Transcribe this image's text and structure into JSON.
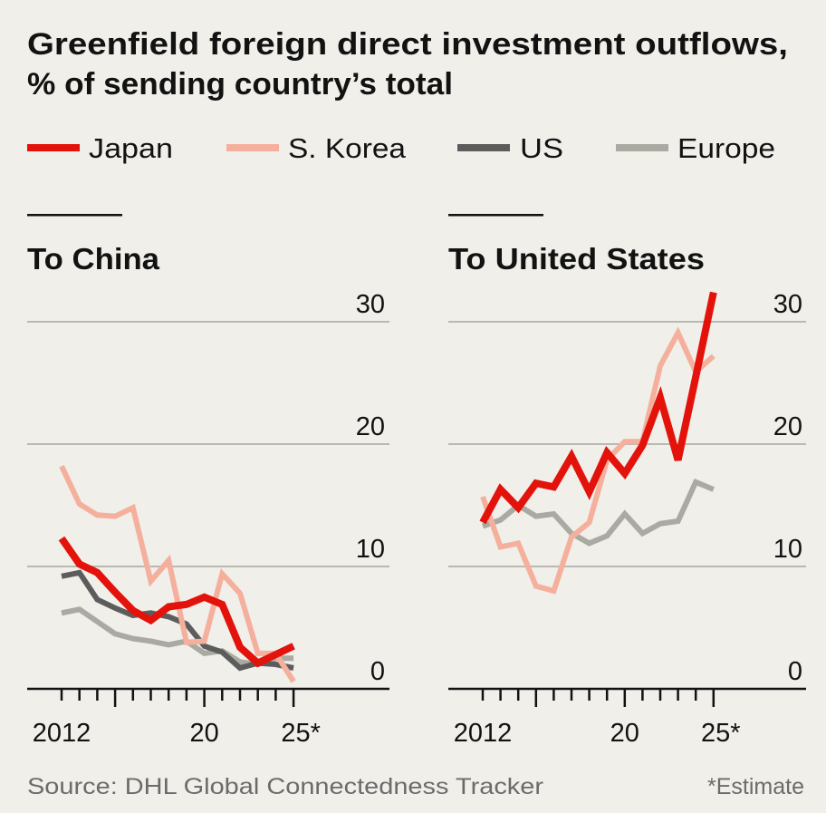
{
  "chart_data": {
    "type": "line",
    "title": "Greenfield foreign direct investment outflows,",
    "subtitle": "% of sending country’s total",
    "legend": [
      {
        "name": "Japan",
        "color": "#e3120b"
      },
      {
        "name": "S. Korea",
        "color": "#f4b09c"
      },
      {
        "name": "US",
        "color": "#5c5c5c"
      },
      {
        "name": "Europe",
        "color": "#a9aaa2"
      }
    ],
    "source": "Source: DHL Global Connectedness Tracker",
    "footnote": "*Estimate",
    "ylim": [
      0,
      30
    ],
    "yticks": [
      "30",
      "20",
      "10",
      "0"
    ],
    "panels": [
      {
        "title": "To China",
        "x": [
          2012,
          2013,
          2014,
          2015,
          2016,
          2017,
          2018,
          2019,
          2020,
          2021,
          2022,
          2023,
          2024,
          2025
        ],
        "xtick_labels": [
          "2012",
          "20",
          "25*"
        ],
        "series": [
          {
            "name": "Europe",
            "values": [
              6.2,
              6.5,
              5.5,
              4.5,
              4.1,
              3.9,
              3.6,
              3.9,
              2.9,
              3.1,
              2.2,
              2.0,
              2.5,
              2.5
            ]
          },
          {
            "name": "US",
            "values": [
              9.2,
              9.5,
              7.3,
              6.6,
              6.0,
              6.2,
              5.9,
              5.3,
              3.5,
              3.0,
              1.7,
              2.1,
              2.0,
              1.7
            ]
          },
          {
            "name": "S. Korea",
            "values": [
              18.2,
              15.1,
              14.2,
              14.1,
              14.8,
              8.8,
              10.5,
              3.8,
              3.9,
              9.4,
              7.8,
              2.9,
              2.9,
              0.6
            ]
          },
          {
            "name": "Japan",
            "values": [
              12.3,
              10.2,
              9.5,
              7.9,
              6.4,
              5.6,
              6.7,
              6.9,
              7.5,
              6.9,
              3.4,
              2.1,
              2.8,
              3.5
            ]
          }
        ]
      },
      {
        "title": "To United States",
        "x": [
          2012,
          2013,
          2014,
          2015,
          2016,
          2017,
          2018,
          2019,
          2020,
          2021,
          2022,
          2023,
          2024,
          2025
        ],
        "xtick_labels": [
          "2012",
          "20",
          "25*"
        ],
        "series": [
          {
            "name": "Europe",
            "values": [
              13.3,
              13.8,
              15.0,
              14.1,
              14.3,
              12.7,
              11.9,
              12.5,
              14.3,
              12.7,
              13.5,
              13.7,
              16.9,
              16.3
            ]
          },
          {
            "name": "S. Korea",
            "values": [
              15.7,
              11.6,
              11.9,
              8.4,
              8.0,
              12.4,
              13.6,
              18.7,
              20.2,
              20.2,
              26.4,
              29.1,
              25.9,
              27.2
            ]
          },
          {
            "name": "Japan",
            "values": [
              13.6,
              16.3,
              14.8,
              16.8,
              16.5,
              19.0,
              16.1,
              19.3,
              17.6,
              19.9,
              23.8,
              18.7,
              25.5,
              32.4
            ]
          }
        ]
      }
    ]
  }
}
